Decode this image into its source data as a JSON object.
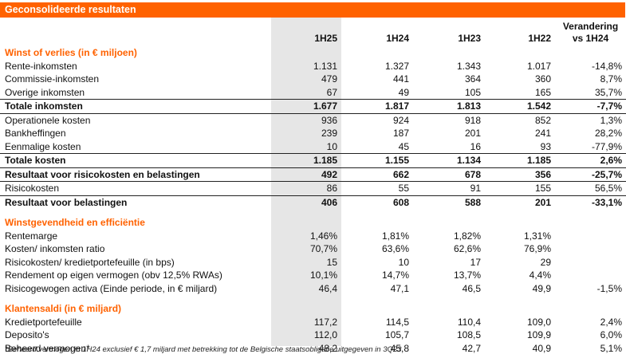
{
  "title": "Geconsolideerde resultaten",
  "columns": [
    "1H25",
    "1H24",
    "1H23",
    "1H22"
  ],
  "change_header_line1": "Verandering",
  "change_header_line2": "vs 1H24",
  "sections": [
    {
      "heading": "Winst of verlies (in € miljoen)",
      "rows": [
        {
          "label": "Rente-inkomsten",
          "values": [
            "1.131",
            "1.327",
            "1.343",
            "1.017"
          ],
          "change": "-14,8%"
        },
        {
          "label": "Commissie-inkomsten",
          "values": [
            "479",
            "441",
            "364",
            "360"
          ],
          "change": "8,7%"
        },
        {
          "label": "Overige inkomsten",
          "values": [
            "67",
            "49",
            "105",
            "165"
          ],
          "change": "35,7%"
        },
        {
          "label": "Totale inkomsten",
          "values": [
            "1.677",
            "1.817",
            "1.813",
            "1.542"
          ],
          "change": "-7,7%",
          "bold": true,
          "topline": true
        },
        {
          "label": "Operationele kosten",
          "values": [
            "936",
            "924",
            "918",
            "852"
          ],
          "change": "1,3%",
          "topline": true
        },
        {
          "label": "Bankheffingen",
          "values": [
            "239",
            "187",
            "201",
            "241"
          ],
          "change": "28,2%"
        },
        {
          "label": "Eenmalige kosten",
          "values": [
            "10",
            "45",
            "16",
            "93"
          ],
          "change": "-77,9%"
        },
        {
          "label": "Totale kosten",
          "values": [
            "1.185",
            "1.155",
            "1.134",
            "1.185"
          ],
          "change": "2,6%",
          "bold": true,
          "topline": true
        },
        {
          "label": "Resultaat voor risicokosten en belastingen",
          "values": [
            "492",
            "662",
            "678",
            "356"
          ],
          "change": "-25,7%",
          "bold": true,
          "topline": true
        },
        {
          "label": "Risicokosten",
          "values": [
            "86",
            "55",
            "91",
            "155"
          ],
          "change": "56,5%",
          "topline": true
        },
        {
          "label": "Resultaat voor belastingen",
          "values": [
            "406",
            "608",
            "588",
            "201"
          ],
          "change": "-33,1%",
          "bold": true,
          "topline": true
        }
      ]
    },
    {
      "heading": "Winstgevendheid en efficiëntie",
      "rows": [
        {
          "label": "Rentemarge",
          "values": [
            "1,46%",
            "1,81%",
            "1,82%",
            "1,31%"
          ],
          "change": ""
        },
        {
          "label": "Kosten/ inkomsten ratio",
          "values": [
            "70,7%",
            "63,6%",
            "62,6%",
            "76,9%"
          ],
          "change": ""
        },
        {
          "label": "Risicokosten/ kredietportefeuille (in bps)",
          "values": [
            "15",
            "10",
            "17",
            "29"
          ],
          "change": ""
        },
        {
          "label": "Rendement op eigen vermogen (obv 12,5% RWAs)",
          "values": [
            "10,1%",
            "14,7%",
            "13,7%",
            "4,4%"
          ],
          "change": ""
        },
        {
          "label": "Risicogewogen activa (Einde periode, in € miljard)",
          "values": [
            "46,4",
            "47,1",
            "46,5",
            "49,9"
          ],
          "change": "-1,5%"
        }
      ]
    },
    {
      "heading": "Klantensaldi (in € miljard)",
      "rows": [
        {
          "label": "Kredietportefeuille",
          "values": [
            "117,2",
            "114,5",
            "110,4",
            "109,0"
          ],
          "change": "2,4%"
        },
        {
          "label": "Deposito's",
          "values": [
            "112,0",
            "105,7",
            "108,5",
            "109,9"
          ],
          "change": "6,0%"
        },
        {
          "label": "Beheerd vermogen*",
          "values": [
            "48,2",
            "45,8",
            "42,7",
            "40,9"
          ],
          "change": "5,1%"
        }
      ]
    }
  ],
  "footnote": "*Beheerd vermogen in 1H24 exclusief € 1,7 miljard met betrekking tot de Belgische staatsobligatie uitgegeven in 3Q23",
  "colors": {
    "accent": "#ff6200",
    "shade": "#e6e6e6"
  }
}
